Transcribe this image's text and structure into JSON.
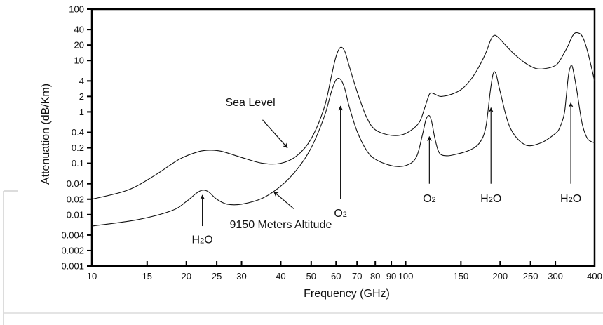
{
  "chart_data": {
    "type": "line",
    "title": "",
    "xlabel": "Frequency (GHz)",
    "ylabel": "Attenuation (dB/Km)",
    "x_scale": "log",
    "y_scale": "log",
    "xlim": [
      10,
      400
    ],
    "ylim": [
      0.001,
      100
    ],
    "grid": false,
    "x_ticks": [
      10,
      15,
      20,
      25,
      30,
      40,
      50,
      60,
      70,
      80,
      90,
      100,
      150,
      200,
      250,
      300,
      400
    ],
    "x_tick_labels": [
      "10",
      "15",
      "20",
      "25",
      "30",
      "40",
      "50",
      "60",
      "70",
      "80",
      "90",
      "100",
      "150",
      "200",
      "250",
      "300",
      "400"
    ],
    "y_ticks": [
      0.001,
      0.002,
      0.004,
      0.01,
      0.02,
      0.04,
      0.1,
      0.2,
      0.4,
      1,
      2,
      4,
      10,
      20,
      40,
      100
    ],
    "y_tick_labels": [
      "0.001",
      "0.002",
      "0.004",
      "0.01",
      "0.02",
      "0.04",
      "0.1",
      "0.2",
      "0.4",
      "1",
      "2",
      "4",
      "10",
      "20",
      "40",
      "100"
    ],
    "series": [
      {
        "name": "Sea Level",
        "x": [
          10,
          13,
          16,
          19,
          22,
          24,
          26,
          30,
          35,
          40,
          45,
          50,
          55,
          58,
          60,
          62,
          64,
          66,
          70,
          75,
          80,
          90,
          100,
          110,
          115,
          119,
          122,
          126,
          130,
          140,
          150,
          160,
          170,
          180,
          186,
          190,
          195,
          205,
          220,
          240,
          260,
          280,
          300,
          310,
          320,
          330,
          340,
          350,
          365,
          380,
          400
        ],
        "y": [
          0.02,
          0.03,
          0.06,
          0.12,
          0.17,
          0.18,
          0.17,
          0.13,
          0.1,
          0.1,
          0.14,
          0.3,
          1.2,
          5,
          12,
          18,
          15,
          8,
          2.5,
          0.8,
          0.45,
          0.35,
          0.38,
          0.6,
          1.2,
          2.2,
          2.3,
          2.1,
          2.0,
          2.2,
          2.7,
          4,
          7,
          14,
          24,
          30,
          30,
          22,
          14,
          9,
          7,
          7,
          8,
          10,
          14,
          20,
          30,
          35,
          30,
          15,
          4
        ]
      },
      {
        "name": "9150 Meters Altitude",
        "x": [
          10,
          14,
          18,
          20,
          21.5,
          22.5,
          23.5,
          25,
          27,
          30,
          35,
          40,
          45,
          50,
          55,
          58,
          60,
          62,
          64,
          66,
          70,
          75,
          80,
          90,
          100,
          108,
          113,
          116,
          118.75,
          121,
          124,
          128,
          135,
          145,
          160,
          172,
          180,
          186,
          190,
          194,
          200,
          215,
          240,
          270,
          300,
          310,
          320,
          325,
          330,
          335,
          340,
          350,
          365,
          380,
          400
        ],
        "y": [
          0.006,
          0.008,
          0.012,
          0.018,
          0.026,
          0.03,
          0.028,
          0.02,
          0.016,
          0.016,
          0.021,
          0.036,
          0.075,
          0.2,
          0.8,
          2.5,
          4.2,
          4.3,
          2.8,
          1.3,
          0.42,
          0.18,
          0.12,
          0.09,
          0.09,
          0.13,
          0.35,
          0.7,
          0.85,
          0.65,
          0.3,
          0.16,
          0.14,
          0.15,
          0.18,
          0.25,
          0.5,
          2.5,
          5.5,
          5.5,
          2.5,
          0.5,
          0.23,
          0.25,
          0.38,
          0.5,
          0.9,
          2,
          5,
          7.5,
          7.5,
          3,
          0.6,
          0.3,
          0.25
        ]
      }
    ],
    "annotations": [
      {
        "id": "sea-level",
        "label": "Sea Level",
        "text_at": [
          32,
          1.3
        ],
        "arrow_from": [
          35,
          0.7
        ],
        "arrow_to": [
          42,
          0.2
        ]
      },
      {
        "id": "altitude",
        "label": "9150 Meters Altitude",
        "text_at": [
          40,
          0.0055
        ],
        "arrow_from": [
          44,
          0.013
        ],
        "arrow_to": [
          38,
          0.028
        ]
      },
      {
        "id": "h2o-22",
        "label": "H2O",
        "text_at": [
          22.5,
          0.0028
        ],
        "arrow_from": [
          22.5,
          0.006
        ],
        "arrow_to": [
          22.5,
          0.024
        ]
      },
      {
        "id": "o2-60",
        "label": "O2",
        "text_at": [
          62,
          0.009
        ],
        "arrow_from": [
          62,
          0.02
        ],
        "arrow_to": [
          62,
          1.3
        ]
      },
      {
        "id": "o2-119",
        "label": "O2",
        "text_at": [
          119,
          0.0175
        ],
        "arrow_from": [
          119,
          0.04
        ],
        "arrow_to": [
          119,
          0.33
        ]
      },
      {
        "id": "h2o-183",
        "label": "H2O",
        "text_at": [
          187,
          0.0175
        ],
        "arrow_from": [
          187,
          0.04
        ],
        "arrow_to": [
          187,
          1.2
        ]
      },
      {
        "id": "h2o-325",
        "label": "H2O",
        "text_at": [
          336,
          0.0175
        ],
        "arrow_from": [
          336,
          0.04
        ],
        "arrow_to": [
          336,
          1.5
        ]
      }
    ],
    "colors": {
      "line": "#111111",
      "axis": "#000000",
      "background": "#ffffff",
      "page_rule": "#dcdcdc"
    }
  }
}
